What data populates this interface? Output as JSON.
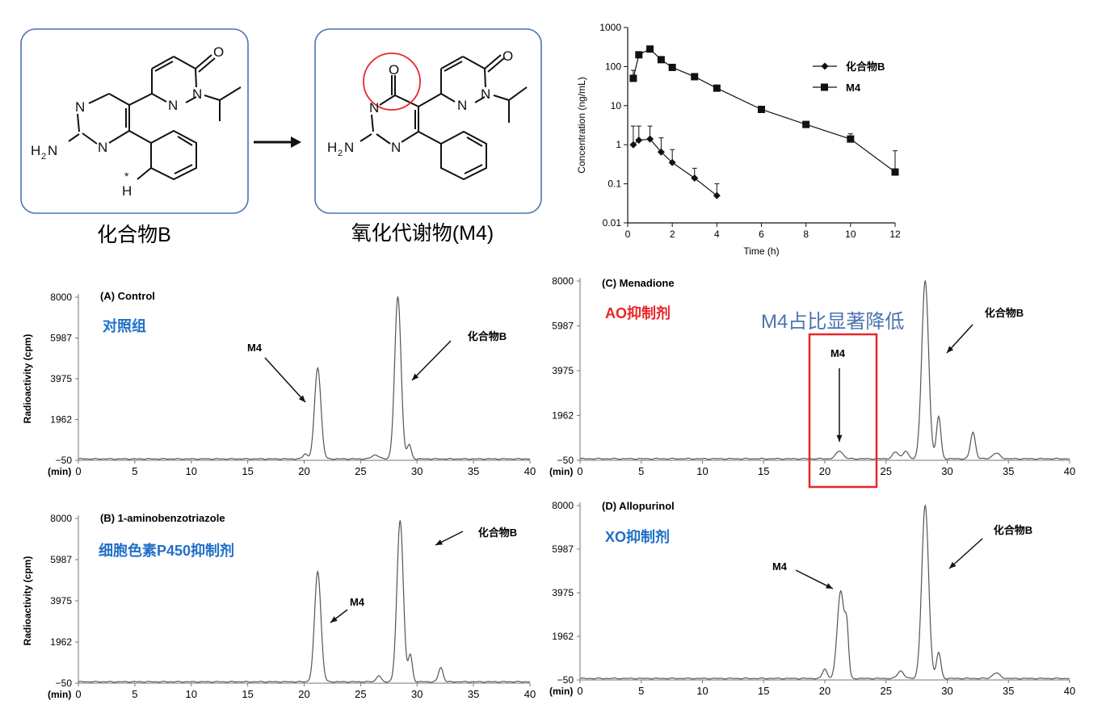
{
  "schemes": {
    "parent_label": "化合物B",
    "metabolite_label": "氧化代谢物(M4)",
    "parent_atoms": {
      "n": "N",
      "h2n": "H",
      "two": "2",
      "nn": "N",
      "o": "O",
      "star": "*",
      "h": "H"
    },
    "metabolite_atoms": {
      "o": "O",
      "n": "N",
      "h2n": "H",
      "two": "2",
      "nn": "N"
    }
  },
  "colors": {
    "box_border": "#4a74b0",
    "highlight_red": "#e8262a",
    "label_blue": "#1f6fc8",
    "trace_gray": "#555555"
  },
  "chart_data": [
    {
      "type": "line",
      "xlabel": "Time (h)",
      "ylabel": "Concentration (ng/mL)",
      "yscale": "log",
      "xlim": [
        0,
        12
      ],
      "ylim": [
        0.01,
        1000
      ],
      "xticks": [
        "0",
        "2",
        "4",
        "6",
        "8",
        "10",
        "12"
      ],
      "yticks": [
        "0.01",
        "0.1",
        "1",
        "10",
        "100",
        "1000"
      ],
      "legend_position": "top-right",
      "series": [
        {
          "name": "化合物B",
          "marker": "diamond",
          "x": [
            0.25,
            0.5,
            1,
            1.5,
            2,
            3,
            4
          ],
          "y": [
            1.0,
            1.3,
            1.4,
            0.65,
            0.35,
            0.14,
            0.05
          ],
          "err_upper": [
            3.0,
            3.0,
            3.0,
            1.5,
            0.75,
            0.25,
            0.1
          ]
        },
        {
          "name": "M4",
          "marker": "square",
          "x": [
            0.25,
            0.5,
            1,
            1.5,
            2,
            3,
            4,
            6,
            8,
            10,
            12
          ],
          "y": [
            50,
            200,
            280,
            150,
            95,
            55,
            28,
            8,
            3.3,
            1.4,
            0.2
          ],
          "err_upper": [
            80,
            220,
            320,
            170,
            105,
            60,
            30,
            8.5,
            3.9,
            1.9,
            0.7
          ]
        }
      ]
    },
    {
      "type": "line",
      "panel": "A",
      "title": "(A) Control",
      "subtitle": "对照组",
      "ylabel": "Radioactivity (cpm)",
      "xunit": "(min)",
      "xlim": [
        0,
        40
      ],
      "yticks": [
        "8000",
        "5987",
        "3975",
        "1962",
        "−50"
      ],
      "xticks": [
        "0",
        "5",
        "10",
        "15",
        "20",
        "25",
        "30",
        "35",
        "40"
      ],
      "peaks": [
        {
          "label": "M4",
          "rt": 21.2,
          "height": 4500
        },
        {
          "label": "化合物B",
          "rt": 28.3,
          "height": 8000
        }
      ],
      "annotations": [
        "M4",
        "化合物B"
      ]
    },
    {
      "type": "line",
      "panel": "B",
      "title": "(B) 1-aminobenzotriazole",
      "subtitle": "细胞色素P450抑制剂",
      "ylabel": "Radioactivity (cpm)",
      "xunit": "(min)",
      "xlim": [
        0,
        40
      ],
      "yticks": [
        "8000",
        "5987",
        "3975",
        "1962",
        "−50"
      ],
      "xticks": [
        "0",
        "5",
        "10",
        "15",
        "20",
        "25",
        "30",
        "35",
        "40"
      ],
      "peaks": [
        {
          "label": "M4",
          "rt": 21.2,
          "height": 5400
        },
        {
          "label": "化合物B",
          "rt": 28.5,
          "height": 7900
        }
      ],
      "annotations": [
        "M4",
        "化合物B"
      ]
    },
    {
      "type": "line",
      "panel": "C",
      "title": "(C) Menadione",
      "subtitle": "AO抑制剂",
      "ylabel": "",
      "xunit": "(min)",
      "xlim": [
        0,
        40
      ],
      "yticks": [
        "8000",
        "5987",
        "3975",
        "1962",
        "−50"
      ],
      "xticks": [
        "0",
        "5",
        "10",
        "15",
        "20",
        "25",
        "30",
        "35",
        "40"
      ],
      "peaks": [
        {
          "label": "M4",
          "rt": 21.2,
          "height": 350
        },
        {
          "label": "化合物B",
          "rt": 28.2,
          "height": 8000
        }
      ],
      "annotations": [
        "M4",
        "化合物B"
      ],
      "callout": "M4占比显著降低"
    },
    {
      "type": "line",
      "panel": "D",
      "title": "(D) Allopurinol",
      "subtitle": "XO抑制剂",
      "ylabel": "",
      "xunit": "(min)",
      "xlim": [
        0,
        40
      ],
      "yticks": [
        "8000",
        "5987",
        "3975",
        "1962",
        "−50"
      ],
      "xticks": [
        "0",
        "5",
        "10",
        "15",
        "20",
        "25",
        "30",
        "35",
        "40"
      ],
      "peaks": [
        {
          "label": "M4",
          "rt": 21.3,
          "height": 4050
        },
        {
          "label": "化合物B",
          "rt": 28.2,
          "height": 8000
        }
      ],
      "annotations": [
        "M4",
        "化合物B"
      ]
    }
  ]
}
